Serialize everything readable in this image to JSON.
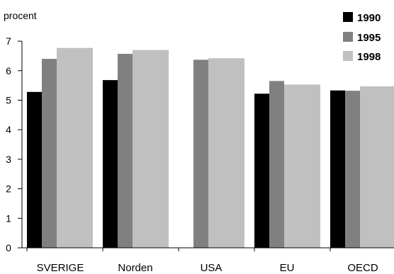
{
  "chart_data": {
    "type": "bar",
    "ylabel": "procent",
    "ylim": [
      0,
      7
    ],
    "yticks": [
      "0",
      "1",
      "2",
      "3",
      "4",
      "5",
      "6",
      "7"
    ],
    "categories": [
      "SVERIGE",
      "Norden",
      "USA",
      "EU",
      "OECD"
    ],
    "series": [
      {
        "name": "1990",
        "color": "#000000",
        "values": [
          5.28,
          5.68,
          null,
          5.22,
          5.33
        ]
      },
      {
        "name": "1995",
        "color": "#808080",
        "values": [
          6.4,
          6.57,
          6.37,
          5.65,
          5.32
        ]
      },
      {
        "name": "1998",
        "color": "#c0c0c0",
        "values": [
          6.77,
          6.7,
          6.42,
          5.53,
          5.47
        ]
      }
    ],
    "legend_position": "top-right",
    "grid": false
  }
}
